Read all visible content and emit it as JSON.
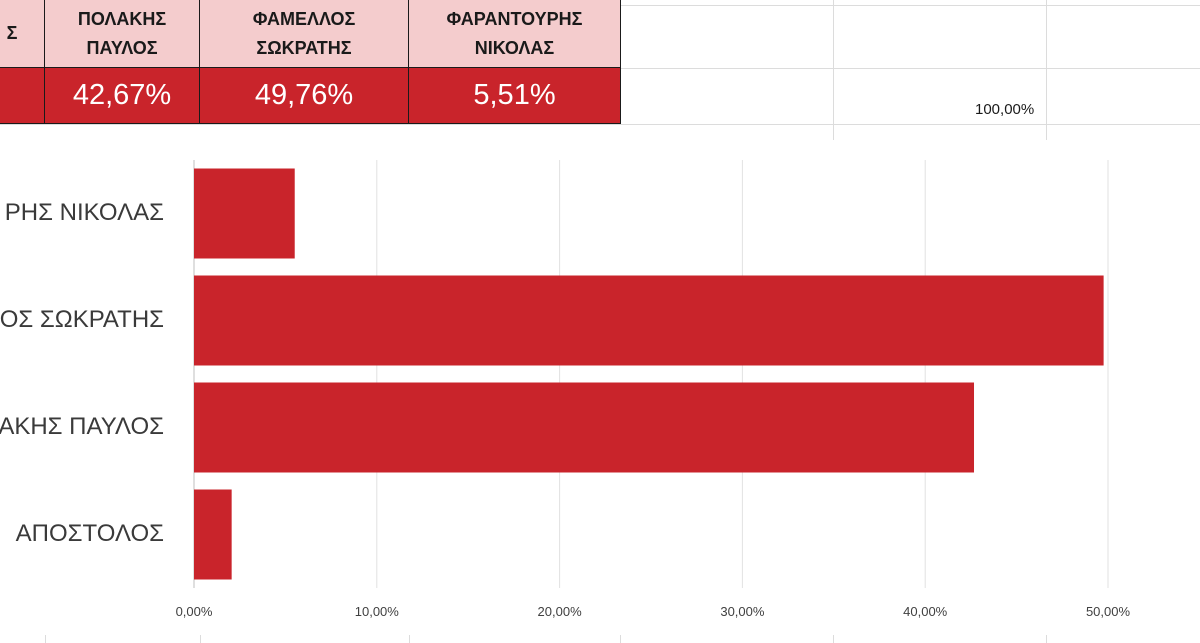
{
  "table": {
    "columns": [
      {
        "header": "Σ",
        "value": ""
      },
      {
        "header": "ΠΟΛΑΚΗΣ\nΠΑΥΛΟΣ",
        "value": "42,67%"
      },
      {
        "header": "ΦΑΜΕΛΛΟΣ\nΣΩΚΡΑΤΗΣ",
        "value": "49,76%"
      },
      {
        "header": "ΦΑΡΑΝΤΟΥΡΗΣ\nΝΙΚΟΛΑΣ",
        "value": "5,51%"
      }
    ],
    "total": "100,00%"
  },
  "colors": {
    "bar": "#c9242b",
    "header_fill": "#f4cccd"
  },
  "chart_data": {
    "type": "bar",
    "orientation": "horizontal",
    "categories": [
      "ΡΗΣ ΝΙΚΟΛΑΣ",
      "ΟΣ ΣΩΚΡΑΤΗΣ",
      "ΑΚΗΣ ΠΑΥΛΟΣ",
      "ΑΠΟΣΤΟΛΟΣ"
    ],
    "values": [
      5.51,
      49.76,
      42.67,
      2.06
    ],
    "xlim": [
      0,
      50
    ],
    "x_ticks": [
      "0,00%",
      "10,00%",
      "20,00%",
      "30,00%",
      "40,00%",
      "50,00%"
    ],
    "grid": true
  }
}
